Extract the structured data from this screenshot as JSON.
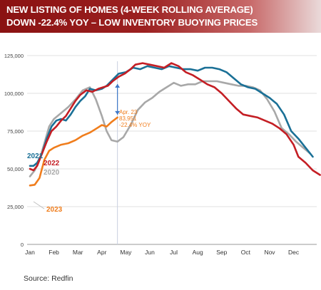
{
  "title": {
    "line1": "NEW LISTING OF HOMES (4-WEEK ROLLING AVERAGE)",
    "line2": "DOWN -22.4% YOY – LOW INVENTORY BUOYING PRICES"
  },
  "source": "Source:  Redfin",
  "chart_data": {
    "type": "line",
    "x_ticks": [
      "Jan",
      "Feb",
      "Mar",
      "Apr",
      "May",
      "Jun",
      "Jul",
      "Aug",
      "Sep",
      "Oct",
      "Nov",
      "Dec"
    ],
    "y_ticks": [
      "0",
      "25,000",
      "50,000",
      "75,000",
      "100,000",
      "125,000"
    ],
    "ylim": [
      0,
      125000
    ],
    "xlim": [
      0,
      11.9
    ],
    "grid": "horizontal",
    "series": [
      {
        "name": "2020",
        "color": "#a8a8a8",
        "points": [
          [
            0.0,
            45000
          ],
          [
            0.2,
            49000
          ],
          [
            0.4,
            56000
          ],
          [
            0.6,
            67000
          ],
          [
            0.8,
            78000
          ],
          [
            1.0,
            83000
          ],
          [
            1.3,
            87000
          ],
          [
            1.6,
            91000
          ],
          [
            1.9,
            96000
          ],
          [
            2.2,
            102000
          ],
          [
            2.5,
            104000
          ],
          [
            2.75,
            96000
          ],
          [
            3.0,
            85000
          ],
          [
            3.2,
            75000
          ],
          [
            3.4,
            69000
          ],
          [
            3.65,
            68000
          ],
          [
            3.9,
            71000
          ],
          [
            4.2,
            79000
          ],
          [
            4.5,
            89000
          ],
          [
            4.8,
            94000
          ],
          [
            5.1,
            97000
          ],
          [
            5.4,
            101000
          ],
          [
            5.7,
            104000
          ],
          [
            6.0,
            107000
          ],
          [
            6.3,
            105000
          ],
          [
            6.6,
            106000
          ],
          [
            6.9,
            106000
          ],
          [
            7.2,
            108000
          ],
          [
            7.5,
            108000
          ],
          [
            7.8,
            108000
          ],
          [
            8.1,
            107000
          ],
          [
            8.4,
            106000
          ],
          [
            8.7,
            105000
          ],
          [
            9.0,
            105000
          ],
          [
            9.3,
            104000
          ],
          [
            9.6,
            102000
          ],
          [
            9.9,
            96000
          ],
          [
            10.2,
            88000
          ],
          [
            10.5,
            77000
          ],
          [
            10.8,
            73000
          ],
          [
            11.1,
            68000
          ],
          [
            11.4,
            64000
          ],
          [
            11.7,
            60000
          ]
        ]
      },
      {
        "name": "2021",
        "color": "#1a7096",
        "points": [
          [
            0.0,
            52000
          ],
          [
            0.15,
            52000
          ],
          [
            0.3,
            54000
          ],
          [
            0.5,
            60000
          ],
          [
            0.7,
            70000
          ],
          [
            0.9,
            78000
          ],
          [
            1.1,
            82000
          ],
          [
            1.3,
            83000
          ],
          [
            1.5,
            82000
          ],
          [
            1.7,
            86000
          ],
          [
            1.9,
            91000
          ],
          [
            2.1,
            95000
          ],
          [
            2.3,
            98000
          ],
          [
            2.5,
            103000
          ],
          [
            2.75,
            102000
          ],
          [
            3.0,
            103000
          ],
          [
            3.2,
            105000
          ],
          [
            3.45,
            109000
          ],
          [
            3.7,
            113000
          ],
          [
            4.0,
            114000
          ],
          [
            4.3,
            117000
          ],
          [
            4.6,
            116000
          ],
          [
            4.9,
            118000
          ],
          [
            5.2,
            117000
          ],
          [
            5.5,
            116000
          ],
          [
            5.8,
            118000
          ],
          [
            6.1,
            117000
          ],
          [
            6.4,
            116000
          ],
          [
            6.7,
            116000
          ],
          [
            7.0,
            115000
          ],
          [
            7.3,
            117000
          ],
          [
            7.6,
            117000
          ],
          [
            7.9,
            116000
          ],
          [
            8.2,
            114000
          ],
          [
            8.5,
            110000
          ],
          [
            8.8,
            106000
          ],
          [
            9.1,
            104000
          ],
          [
            9.4,
            103000
          ],
          [
            9.7,
            100000
          ],
          [
            10.0,
            97000
          ],
          [
            10.3,
            93000
          ],
          [
            10.6,
            86000
          ],
          [
            10.9,
            75000
          ],
          [
            11.2,
            70000
          ],
          [
            11.5,
            64000
          ],
          [
            11.8,
            58000
          ]
        ]
      },
      {
        "name": "2022",
        "color": "#c41e24",
        "points": [
          [
            0.0,
            50000
          ],
          [
            0.15,
            49000
          ],
          [
            0.3,
            52000
          ],
          [
            0.5,
            60000
          ],
          [
            0.7,
            68000
          ],
          [
            0.9,
            75000
          ],
          [
            1.1,
            78000
          ],
          [
            1.3,
            82000
          ],
          [
            1.5,
            85000
          ],
          [
            1.7,
            90000
          ],
          [
            1.9,
            95000
          ],
          [
            2.1,
            99000
          ],
          [
            2.35,
            102000
          ],
          [
            2.6,
            101000
          ],
          [
            2.85,
            103000
          ],
          [
            3.05,
            104000
          ],
          [
            3.25,
            105000
          ],
          [
            3.45,
            108000
          ],
          [
            3.7,
            111000
          ],
          [
            3.95,
            113000
          ],
          [
            4.2,
            116000
          ],
          [
            4.4,
            119000
          ],
          [
            4.7,
            120000
          ],
          [
            5.0,
            119000
          ],
          [
            5.3,
            118000
          ],
          [
            5.6,
            117000
          ],
          [
            5.9,
            120000
          ],
          [
            6.2,
            118000
          ],
          [
            6.5,
            114000
          ],
          [
            6.8,
            112000
          ],
          [
            7.1,
            109000
          ],
          [
            7.4,
            106000
          ],
          [
            7.7,
            104000
          ],
          [
            8.0,
            100000
          ],
          [
            8.3,
            95000
          ],
          [
            8.6,
            90000
          ],
          [
            8.9,
            86000
          ],
          [
            9.2,
            85000
          ],
          [
            9.5,
            84000
          ],
          [
            9.8,
            82000
          ],
          [
            10.1,
            80000
          ],
          [
            10.4,
            77000
          ],
          [
            10.7,
            73000
          ],
          [
            11.0,
            66000
          ],
          [
            11.2,
            58000
          ],
          [
            11.5,
            54000
          ],
          [
            11.8,
            49000
          ],
          [
            12.1,
            46000
          ]
        ]
      },
      {
        "name": "2023",
        "color": "#f07d1c",
        "points": [
          [
            0.0,
            39000
          ],
          [
            0.2,
            39500
          ],
          [
            0.4,
            44000
          ],
          [
            0.6,
            56000
          ],
          [
            0.8,
            62000
          ],
          [
            1.0,
            64000
          ],
          [
            1.3,
            66000
          ],
          [
            1.6,
            67000
          ],
          [
            1.9,
            69000
          ],
          [
            2.2,
            72000
          ],
          [
            2.5,
            74000
          ],
          [
            2.8,
            77000
          ],
          [
            3.0,
            79000
          ],
          [
            3.2,
            78000
          ],
          [
            3.4,
            81000
          ],
          [
            3.65,
            84000
          ]
        ]
      }
    ],
    "annotations": [
      {
        "lines": [
          "Apr. 23",
          "83,951",
          "-22.4% YOY"
        ],
        "color": "#f07d1c"
      }
    ],
    "marker_x": 3.65,
    "arrow": {
      "x": 3.65,
      "from": 84000,
      "to": 108000,
      "color": "#3d78c8"
    }
  }
}
